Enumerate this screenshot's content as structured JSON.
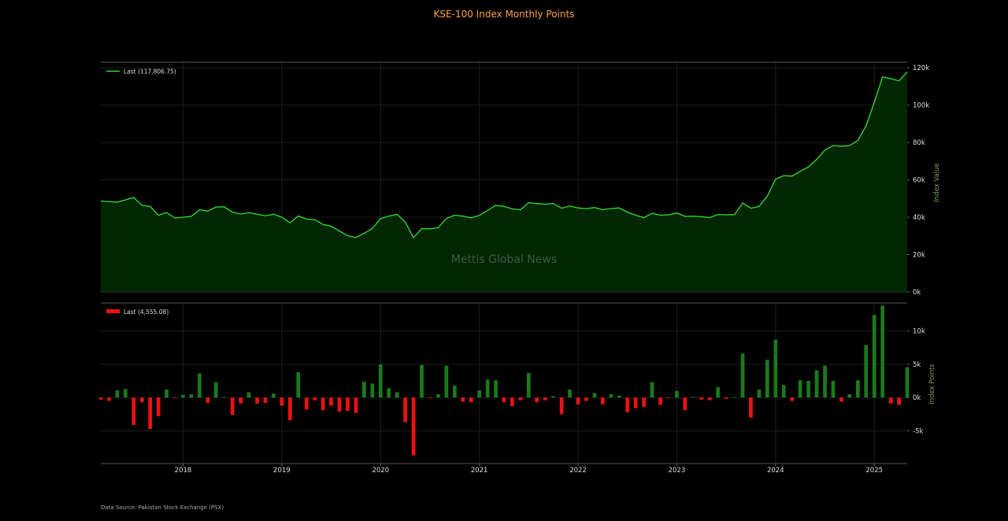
{
  "title": "KSE-100 Index Monthly Points",
  "source": "Data Source: Pakistan Stock Exchange (PSX)",
  "watermark": "Mettis Global News",
  "colors": {
    "line": "#33dd33",
    "area": "#032a03",
    "positive_bar": "#1a7a1a",
    "negative_bar": "#ee1111",
    "axis_label": "#7fa05a",
    "grid": "#1e1e1e"
  },
  "chart_data": [
    {
      "type": "area",
      "legend": "Last (117,806.75)",
      "legend_position": "top-left",
      "ylabel": "Index Value",
      "ylim": [
        0,
        123000
      ],
      "yticks": [
        0,
        20000,
        40000,
        60000,
        80000,
        100000,
        120000
      ],
      "ytick_labels": [
        "0k",
        "20k",
        "40k",
        "60k",
        "80k",
        "100k",
        "120k"
      ],
      "grid": true,
      "x_start": "2017-03",
      "x_end": "2025-05",
      "xticks": [
        "2018",
        "2019",
        "2020",
        "2021",
        "2022",
        "2023",
        "2024",
        "2025"
      ],
      "x": [
        "2017-03",
        "2017-04",
        "2017-05",
        "2017-06",
        "2017-07",
        "2017-08",
        "2017-09",
        "2017-10",
        "2017-11",
        "2017-12",
        "2018-01",
        "2018-02",
        "2018-03",
        "2018-04",
        "2018-05",
        "2018-06",
        "2018-07",
        "2018-08",
        "2018-09",
        "2018-10",
        "2018-11",
        "2018-12",
        "2019-01",
        "2019-02",
        "2019-03",
        "2019-04",
        "2019-05",
        "2019-06",
        "2019-07",
        "2019-08",
        "2019-09",
        "2019-10",
        "2019-11",
        "2019-12",
        "2020-01",
        "2020-02",
        "2020-03",
        "2020-04",
        "2020-05",
        "2020-06",
        "2020-07",
        "2020-08",
        "2020-09",
        "2020-10",
        "2020-11",
        "2020-12",
        "2021-01",
        "2021-02",
        "2021-03",
        "2021-04",
        "2021-05",
        "2021-06",
        "2021-07",
        "2021-08",
        "2021-09",
        "2021-10",
        "2021-11",
        "2021-12",
        "2022-01",
        "2022-02",
        "2022-03",
        "2022-04",
        "2022-05",
        "2022-06",
        "2022-07",
        "2022-08",
        "2022-09",
        "2022-10",
        "2022-11",
        "2022-12",
        "2023-01",
        "2023-02",
        "2023-03",
        "2023-04",
        "2023-05",
        "2023-06",
        "2023-07",
        "2023-08",
        "2023-09",
        "2023-10",
        "2023-11",
        "2023-12",
        "2024-01",
        "2024-02",
        "2024-03",
        "2024-04",
        "2024-05",
        "2024-06",
        "2024-07",
        "2024-08",
        "2024-09",
        "2024-10",
        "2024-11",
        "2024-12",
        "2025-01",
        "2025-02",
        "2025-03",
        "2025-04",
        "2025-05"
      ],
      "values": [
        48700,
        48400,
        48100,
        49300,
        50600,
        46400,
        45800,
        41100,
        42500,
        39600,
        40000,
        40500,
        44000,
        43300,
        45500,
        45600,
        42700,
        41700,
        42500,
        41600,
        40800,
        41600,
        40000,
        37000,
        40700,
        39000,
        38700,
        36200,
        35200,
        32700,
        30100,
        29200,
        31400,
        34000,
        39300,
        40600,
        41600,
        37400,
        29100,
        33900,
        33800,
        34400,
        39400,
        41100,
        40600,
        39700,
        41000,
        43600,
        46400,
        45800,
        44500,
        44000,
        47800,
        47300,
        47000,
        47400,
        44800,
        46000,
        45000,
        44600,
        45200,
        44000,
        44700,
        45000,
        42700,
        41100,
        39800,
        42100,
        41100,
        41300,
        42300,
        40500,
        40600,
        40300,
        39800,
        41500,
        41300,
        41400,
        47600,
        44800,
        45800,
        51400,
        60400,
        62300,
        62000,
        64600,
        66900,
        71000,
        76000,
        78400,
        78000,
        78400,
        81100,
        89000,
        101500,
        115100,
        114200,
        113000,
        117806.75
      ]
    },
    {
      "type": "bar",
      "legend": "Last (4,555.08)",
      "legend_position": "top-left",
      "ylabel": "Index Points",
      "ylim": [
        -9900,
        14200
      ],
      "yticks": [
        -5000,
        0,
        5000,
        10000
      ],
      "ytick_labels": [
        "-5k",
        "0k",
        "5k",
        "10k"
      ],
      "grid": true,
      "x_start": "2017-03",
      "x_end": "2025-05",
      "xticks": [
        "2018",
        "2019",
        "2020",
        "2021",
        "2022",
        "2023",
        "2024",
        "2025"
      ],
      "x": [
        "2017-03",
        "2017-04",
        "2017-05",
        "2017-06",
        "2017-07",
        "2017-08",
        "2017-09",
        "2017-10",
        "2017-11",
        "2017-12",
        "2018-01",
        "2018-02",
        "2018-03",
        "2018-04",
        "2018-05",
        "2018-06",
        "2018-07",
        "2018-08",
        "2018-09",
        "2018-10",
        "2018-11",
        "2018-12",
        "2019-01",
        "2019-02",
        "2019-03",
        "2019-04",
        "2019-05",
        "2019-06",
        "2019-07",
        "2019-08",
        "2019-09",
        "2019-10",
        "2019-11",
        "2019-12",
        "2020-01",
        "2020-02",
        "2020-03",
        "2020-04",
        "2020-05",
        "2020-06",
        "2020-07",
        "2020-08",
        "2020-09",
        "2020-10",
        "2020-11",
        "2020-12",
        "2021-01",
        "2021-02",
        "2021-03",
        "2021-04",
        "2021-05",
        "2021-06",
        "2021-07",
        "2021-08",
        "2021-09",
        "2021-10",
        "2021-11",
        "2021-12",
        "2022-01",
        "2022-02",
        "2022-03",
        "2022-04",
        "2022-05",
        "2022-06",
        "2022-07",
        "2022-08",
        "2022-09",
        "2022-10",
        "2022-11",
        "2022-12",
        "2023-01",
        "2023-02",
        "2023-03",
        "2023-04",
        "2023-05",
        "2023-06",
        "2023-07",
        "2023-08",
        "2023-09",
        "2023-10",
        "2023-11",
        "2023-12",
        "2024-01",
        "2024-02",
        "2024-03",
        "2024-04",
        "2024-05",
        "2024-06",
        "2024-07",
        "2024-08",
        "2024-09",
        "2024-10",
        "2024-11",
        "2024-12",
        "2025-01",
        "2025-02",
        "2025-03",
        "2025-04",
        "2025-05"
      ],
      "values": [
        -300,
        -500,
        1100,
        1300,
        -4100,
        -700,
        -4700,
        -2800,
        1200,
        -100,
        400,
        500,
        3600,
        -800,
        2300,
        100,
        -2600,
        -900,
        800,
        -900,
        -800,
        600,
        -1200,
        -3400,
        3800,
        -1800,
        -400,
        -1900,
        -1200,
        -2100,
        -2000,
        -2300,
        2400,
        2100,
        5000,
        1400,
        800,
        -3700,
        -8700,
        4900,
        -100,
        500,
        4800,
        1800,
        -600,
        -700,
        1100,
        2700,
        2600,
        -700,
        -1300,
        -400,
        3700,
        -700,
        -400,
        200,
        -2500,
        1200,
        -1000,
        -500,
        700,
        -1000,
        500,
        300,
        -2200,
        -1600,
        -1400,
        2300,
        -1100,
        -100,
        1000,
        -1900,
        100,
        -300,
        -400,
        1600,
        -200,
        100,
        6600,
        -3000,
        1200,
        5700,
        8700,
        1900,
        -500,
        2600,
        2500,
        4100,
        4800,
        2500,
        -600,
        500,
        2600,
        7900,
        12400,
        13800,
        -900,
        -1100,
        4555.08
      ]
    }
  ]
}
